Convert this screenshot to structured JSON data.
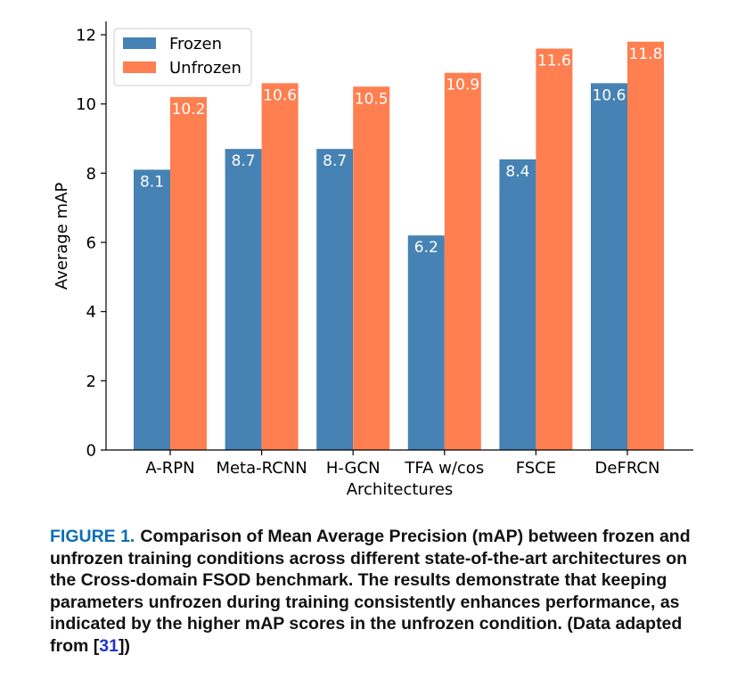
{
  "chart_data": {
    "type": "bar",
    "categories": [
      "A-RPN",
      "Meta-RCNN",
      "H-GCN",
      "TFA w/cos",
      "FSCE",
      "DeFRCN"
    ],
    "series": [
      {
        "name": "Frozen",
        "values": [
          8.1,
          8.7,
          8.7,
          6.2,
          8.4,
          10.6
        ],
        "color": "#4682b4"
      },
      {
        "name": "Unfrozen",
        "values": [
          10.2,
          10.6,
          10.5,
          10.9,
          11.6,
          11.8
        ],
        "color": "#ff7f50"
      }
    ],
    "data_labels": {
      "Frozen": [
        "8.1",
        "8.7",
        "8.7",
        "6.2",
        "8.4",
        "10.6"
      ],
      "Unfrozen": [
        "10.2",
        "10.6",
        "10.5",
        "10.9",
        "11.6",
        "11.8"
      ]
    },
    "xlabel": "Architectures",
    "ylabel": "Average mAP",
    "ylim": [
      0,
      12
    ],
    "yticks": [
      "0",
      "2",
      "4",
      "6",
      "8",
      "10",
      "12"
    ],
    "grid": false,
    "legend_position": "top-left"
  },
  "caption": {
    "label": "FIGURE 1.",
    "text_before_ref": "Comparison of Mean Average Precision (mAP) between frozen and unfrozen training conditions across different state-of-the-art architectures on the Cross-domain FSOD benchmark. The results demonstrate that keeping parameters unfrozen during training consistently enhances performance, as indicated by the higher mAP scores in the unfrozen condition. (Data adapted from [",
    "ref": "31",
    "text_after_ref": "])"
  }
}
